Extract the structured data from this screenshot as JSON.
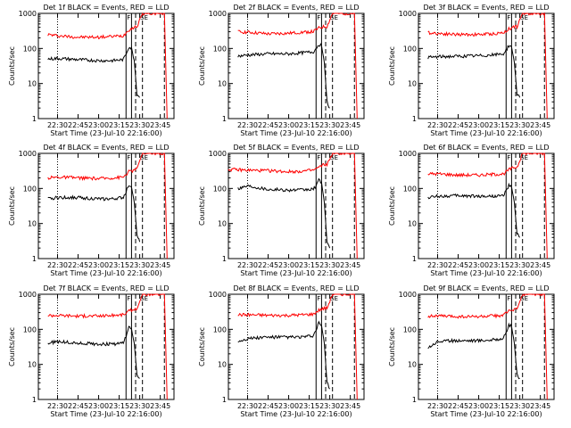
{
  "page": {
    "background": "#ffffff"
  },
  "chart_data": [
    {
      "type": "line",
      "title": "Det 1f BLACK = Events, RED = LLD",
      "xlabel": "Start Time (23-Jul-10 22:16:00)",
      "ylabel": "Counts/sec",
      "y_scale": "log",
      "ylim": [
        1,
        1000
      ],
      "x_ticks": [
        "22:30",
        "22:45",
        "23:00",
        "23:15",
        "23:30",
        "23:45"
      ],
      "y_ticks": [
        "1",
        "10",
        "100",
        "1000"
      ],
      "x_range": [
        "22:16",
        "23:55"
      ],
      "markers": {
        "dotted": "22:30",
        "solid": [
          "23:20",
          "23:24"
        ],
        "dashed": [
          "23:27",
          "23:32",
          "23:48"
        ],
        "labels": [
          "F",
          "SE"
        ]
      },
      "series": [
        {
          "color": "#ff0000",
          "x": [
            "22:23",
            "22:30",
            "22:45",
            "23:00",
            "23:10",
            "23:18",
            "23:22",
            "23:26",
            "23:28",
            "23:32",
            "23:48",
            "23:50"
          ],
          "values": [
            250,
            230,
            210,
            210,
            220,
            230,
            340,
            400,
            420,
            1000,
            1000,
            1
          ]
        },
        {
          "color": "#000000",
          "x": [
            "22:23",
            "22:30",
            "22:45",
            "23:00",
            "23:10",
            "23:18",
            "23:20",
            "23:22",
            "23:24",
            "23:26",
            "23:28",
            "23:30"
          ],
          "values": [
            50,
            52,
            48,
            45,
            45,
            48,
            70,
            110,
            100,
            45,
            5,
            4
          ]
        }
      ]
    },
    {
      "type": "line",
      "title": "Det 2f BLACK = Events, RED = LLD",
      "xlabel": "Start Time (23-Jul-10 22:16:00)",
      "ylabel": "Counts/sec",
      "y_scale": "log",
      "ylim": [
        1,
        1000
      ],
      "x_ticks": [
        "22:30",
        "22:45",
        "23:00",
        "23:15",
        "23:30",
        "23:45"
      ],
      "y_ticks": [
        "1",
        "10",
        "100",
        "1000"
      ],
      "x_range": [
        "22:16",
        "23:55"
      ],
      "markers": {
        "dotted": "22:30",
        "solid": [
          "23:20",
          "23:24"
        ],
        "dashed": [
          "23:27",
          "23:32",
          "23:48"
        ],
        "labels": [
          "F",
          "SE"
        ]
      },
      "series": [
        {
          "color": "#ff0000",
          "x": [
            "22:23",
            "22:30",
            "22:45",
            "23:00",
            "23:10",
            "23:18",
            "23:22",
            "23:26",
            "23:28",
            "23:32",
            "23:48",
            "23:50"
          ],
          "values": [
            300,
            290,
            260,
            270,
            290,
            300,
            380,
            420,
            420,
            1000,
            1000,
            1
          ]
        },
        {
          "color": "#000000",
          "x": [
            "22:23",
            "22:30",
            "22:45",
            "23:00",
            "23:10",
            "23:18",
            "23:20",
            "23:22",
            "23:24",
            "23:26",
            "23:28",
            "23:30"
          ],
          "values": [
            60,
            65,
            70,
            70,
            75,
            80,
            100,
            130,
            120,
            40,
            3,
            2
          ]
        }
      ]
    },
    {
      "type": "line",
      "title": "Det 3f BLACK = Events, RED = LLD",
      "xlabel": "Start Time (23-Jul-10 22:16:00)",
      "ylabel": "Counts/sec",
      "y_scale": "log",
      "ylim": [
        1,
        1000
      ],
      "x_ticks": [
        "22:30",
        "22:45",
        "23:00",
        "23:15",
        "23:30",
        "23:45"
      ],
      "y_ticks": [
        "1",
        "10",
        "100",
        "1000"
      ],
      "x_range": [
        "22:16",
        "23:55"
      ],
      "markers": {
        "dotted": "22:30",
        "solid": [
          "23:20",
          "23:24"
        ],
        "dashed": [
          "23:27",
          "23:32",
          "23:48"
        ],
        "labels": [
          "F",
          "SE"
        ]
      },
      "series": [
        {
          "color": "#ff0000",
          "x": [
            "22:23",
            "22:30",
            "22:45",
            "23:00",
            "23:10",
            "23:18",
            "23:22",
            "23:26",
            "23:28",
            "23:32",
            "23:48",
            "23:50"
          ],
          "values": [
            280,
            270,
            250,
            250,
            260,
            280,
            360,
            420,
            420,
            1000,
            1000,
            1
          ]
        },
        {
          "color": "#000000",
          "x": [
            "22:23",
            "22:30",
            "22:45",
            "23:00",
            "23:10",
            "23:18",
            "23:20",
            "23:22",
            "23:24",
            "23:26",
            "23:28",
            "23:30"
          ],
          "values": [
            55,
            58,
            60,
            62,
            65,
            70,
            90,
            120,
            110,
            40,
            5,
            4
          ]
        }
      ]
    },
    {
      "type": "line",
      "title": "Det 4f BLACK = Events, RED = LLD",
      "xlabel": "Start Time (23-Jul-10 22:16:00)",
      "ylabel": "Counts/sec",
      "y_scale": "log",
      "ylim": [
        1,
        1000
      ],
      "x_ticks": [
        "22:30",
        "22:45",
        "23:00",
        "23:15",
        "23:30",
        "23:45"
      ],
      "y_ticks": [
        "1",
        "10",
        "100",
        "1000"
      ],
      "x_range": [
        "22:16",
        "23:55"
      ],
      "markers": {
        "dotted": "22:30",
        "solid": [
          "23:20",
          "23:24"
        ],
        "dashed": [
          "23:27",
          "23:32",
          "23:48"
        ],
        "labels": [
          "F",
          "SE"
        ]
      },
      "series": [
        {
          "color": "#ff0000",
          "x": [
            "22:23",
            "22:30",
            "22:45",
            "23:00",
            "23:10",
            "23:18",
            "23:22",
            "23:26",
            "23:28",
            "23:32",
            "23:48",
            "23:50"
          ],
          "values": [
            200,
            210,
            200,
            190,
            200,
            210,
            300,
            330,
            380,
            1000,
            1000,
            1
          ]
        },
        {
          "color": "#000000",
          "x": [
            "22:23",
            "22:30",
            "22:45",
            "23:00",
            "23:10",
            "23:18",
            "23:20",
            "23:22",
            "23:24",
            "23:26",
            "23:28",
            "23:30"
          ],
          "values": [
            50,
            55,
            55,
            50,
            50,
            55,
            80,
            130,
            110,
            40,
            5,
            3
          ]
        }
      ]
    },
    {
      "type": "line",
      "title": "Det 5f BLACK = Events, RED = LLD",
      "xlabel": "Start Time (23-Jul-10 22:16:00)",
      "ylabel": "Counts/sec",
      "y_scale": "log",
      "ylim": [
        1,
        1000
      ],
      "x_ticks": [
        "22:30",
        "22:45",
        "23:00",
        "23:15",
        "23:30",
        "23:45"
      ],
      "y_ticks": [
        "1",
        "10",
        "100",
        "1000"
      ],
      "x_range": [
        "22:16",
        "23:55"
      ],
      "markers": {
        "dotted": "22:30",
        "solid": [
          "23:20",
          "23:24"
        ],
        "dashed": [
          "23:27",
          "23:32",
          "23:48"
        ],
        "labels": [
          "F",
          "SE"
        ]
      },
      "series": [
        {
          "color": "#ff0000",
          "x": [
            "22:16",
            "22:30",
            "22:45",
            "23:00",
            "23:10",
            "23:18",
            "23:22",
            "23:26",
            "23:28",
            "23:32",
            "23:48",
            "23:50"
          ],
          "values": [
            350,
            330,
            320,
            300,
            310,
            330,
            400,
            480,
            480,
            1000,
            1000,
            1
          ]
        },
        {
          "color": "#000000",
          "x": [
            "22:23",
            "22:30",
            "22:45",
            "23:00",
            "23:10",
            "23:18",
            "23:20",
            "23:22",
            "23:24",
            "23:26",
            "23:28",
            "23:30"
          ],
          "values": [
            100,
            120,
            95,
            90,
            90,
            95,
            120,
            170,
            150,
            40,
            3,
            2
          ]
        }
      ]
    },
    {
      "type": "line",
      "title": "Det 6f BLACK = Events, RED = LLD",
      "xlabel": "Start Time (23-Jul-10 22:16:00)",
      "ylabel": "Counts/sec",
      "y_scale": "log",
      "ylim": [
        1,
        1000
      ],
      "x_ticks": [
        "22:30",
        "22:45",
        "23:00",
        "23:15",
        "23:30",
        "23:45"
      ],
      "y_ticks": [
        "1",
        "10",
        "100",
        "1000"
      ],
      "x_range": [
        "22:16",
        "23:55"
      ],
      "markers": {
        "dotted": "22:30",
        "solid": [
          "23:20",
          "23:24"
        ],
        "dashed": [
          "23:27",
          "23:32",
          "23:48"
        ],
        "labels": [
          "F",
          "SE"
        ]
      },
      "series": [
        {
          "color": "#ff0000",
          "x": [
            "22:23",
            "22:30",
            "22:45",
            "23:00",
            "23:10",
            "23:18",
            "23:22",
            "23:26",
            "23:28",
            "23:32",
            "23:48",
            "23:50"
          ],
          "values": [
            260,
            260,
            240,
            240,
            250,
            260,
            340,
            400,
            400,
            1000,
            1000,
            1
          ]
        },
        {
          "color": "#000000",
          "x": [
            "22:23",
            "22:30",
            "22:45",
            "23:00",
            "23:10",
            "23:18",
            "23:20",
            "23:22",
            "23:24",
            "23:26",
            "23:28",
            "23:30"
          ],
          "values": [
            55,
            60,
            62,
            60,
            60,
            62,
            85,
            120,
            110,
            40,
            5,
            4
          ]
        }
      ]
    },
    {
      "type": "line",
      "title": "Det 7f BLACK = Events, RED = LLD",
      "xlabel": "Start Time (23-Jul-10 22:16:00)",
      "ylabel": "Counts/sec",
      "y_scale": "log",
      "ylim": [
        1,
        1000
      ],
      "x_ticks": [
        "22:30",
        "22:45",
        "23:00",
        "23:15",
        "23:30",
        "23:45"
      ],
      "y_ticks": [
        "1",
        "10",
        "100",
        "1000"
      ],
      "x_range": [
        "22:16",
        "23:55"
      ],
      "markers": {
        "dotted": "22:30",
        "solid": [
          "23:20",
          "23:24"
        ],
        "dashed": [
          "23:27",
          "23:32",
          "23:48"
        ],
        "labels": [
          "F",
          "SE"
        ]
      },
      "series": [
        {
          "color": "#ff0000",
          "x": [
            "22:23",
            "22:30",
            "22:45",
            "23:00",
            "23:10",
            "23:18",
            "23:22",
            "23:26",
            "23:28",
            "23:32",
            "23:48",
            "23:50"
          ],
          "values": [
            250,
            250,
            240,
            240,
            250,
            260,
            330,
            380,
            380,
            1000,
            1000,
            1
          ]
        },
        {
          "color": "#000000",
          "x": [
            "22:23",
            "22:30",
            "22:45",
            "23:00",
            "23:10",
            "23:18",
            "23:20",
            "23:22",
            "23:24",
            "23:26",
            "23:28",
            "23:30"
          ],
          "values": [
            40,
            45,
            40,
            38,
            38,
            40,
            65,
            110,
            100,
            40,
            5,
            4
          ]
        }
      ]
    },
    {
      "type": "line",
      "title": "Det 8f BLACK = Events, RED = LLD",
      "xlabel": "Start Time (23-Jul-10 22:16:00)",
      "ylabel": "Counts/sec",
      "y_scale": "log",
      "ylim": [
        1,
        1000
      ],
      "x_ticks": [
        "22:30",
        "22:45",
        "23:00",
        "23:15",
        "23:30",
        "23:45"
      ],
      "y_ticks": [
        "1",
        "10",
        "100",
        "1000"
      ],
      "x_range": [
        "22:16",
        "23:55"
      ],
      "markers": {
        "dotted": "22:30",
        "solid": [
          "23:20",
          "23:24"
        ],
        "dashed": [
          "23:27",
          "23:32",
          "23:48"
        ],
        "labels": [
          "F",
          "SE"
        ]
      },
      "series": [
        {
          "color": "#ff0000",
          "x": [
            "22:23",
            "22:30",
            "22:45",
            "23:00",
            "23:10",
            "23:18",
            "23:22",
            "23:26",
            "23:28",
            "23:32",
            "23:48",
            "23:50"
          ],
          "values": [
            260,
            260,
            250,
            250,
            260,
            270,
            350,
            400,
            400,
            1000,
            1000,
            1
          ]
        },
        {
          "color": "#000000",
          "x": [
            "22:23",
            "22:30",
            "22:45",
            "23:00",
            "23:10",
            "23:18",
            "23:20",
            "23:22",
            "23:24",
            "23:26",
            "23:28",
            "23:30"
          ],
          "values": [
            45,
            55,
            60,
            60,
            60,
            65,
            95,
            150,
            130,
            40,
            3,
            2
          ]
        }
      ]
    },
    {
      "type": "line",
      "title": "Det 9f BLACK = Events, RED = LLD",
      "xlabel": "Start Time (23-Jul-10 22:16:00)",
      "ylabel": "Counts/sec",
      "y_scale": "log",
      "ylim": [
        1,
        1000
      ],
      "x_ticks": [
        "22:30",
        "22:45",
        "23:00",
        "23:15",
        "23:30",
        "23:45"
      ],
      "y_ticks": [
        "1",
        "10",
        "100",
        "1000"
      ],
      "x_range": [
        "22:16",
        "23:55"
      ],
      "markers": {
        "dotted": "22:30",
        "solid": [
          "23:20",
          "23:24"
        ],
        "dashed": [
          "23:27",
          "23:32",
          "23:48"
        ],
        "labels": [
          "F",
          "SE"
        ]
      },
      "series": [
        {
          "color": "#ff0000",
          "x": [
            "22:23",
            "22:30",
            "22:45",
            "23:00",
            "23:10",
            "23:18",
            "23:22",
            "23:26",
            "23:28",
            "23:32",
            "23:48",
            "23:50"
          ],
          "values": [
            240,
            240,
            230,
            230,
            240,
            250,
            330,
            380,
            380,
            1000,
            1000,
            1
          ]
        },
        {
          "color": "#000000",
          "x": [
            "22:23",
            "22:30",
            "22:45",
            "23:00",
            "23:10",
            "23:18",
            "23:20",
            "23:22",
            "23:24",
            "23:26",
            "23:28",
            "23:30"
          ],
          "values": [
            30,
            45,
            48,
            48,
            50,
            55,
            80,
            130,
            120,
            40,
            5,
            4
          ]
        }
      ]
    }
  ]
}
